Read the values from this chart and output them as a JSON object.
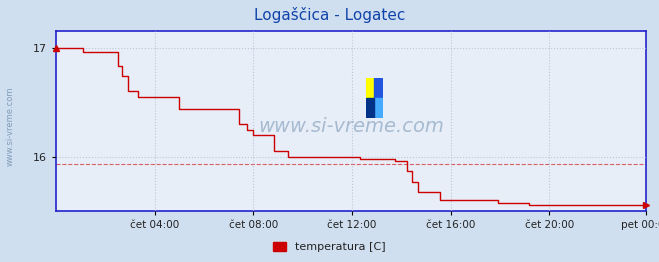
{
  "title": "Logaščica - Logatec",
  "title_color": "#1144aa",
  "title_fontsize": 11,
  "background_color": "#d0dff0",
  "plot_bg_color": "#e8eef8",
  "grid_color": "#b8c8d8",
  "line_color": "#cc0000",
  "axis_color": "#2222cc",
  "watermark_color": "#7090b0",
  "yticks": [
    16,
    17
  ],
  "ylim": [
    15.5,
    17.15
  ],
  "xlim_start": 0,
  "xlim_end": 287,
  "xtick_positions": [
    48,
    96,
    144,
    192,
    240,
    287
  ],
  "xtick_labels": [
    "čet 04:00",
    "čet 08:00",
    "čet 12:00",
    "čet 16:00",
    "čet 20:00",
    "pet 00:00"
  ],
  "legend_label": "temperatura [C]",
  "legend_color": "#cc0000",
  "watermark": "www.si-vreme.com",
  "sidewatermark": "www.si-vreme.com",
  "dashed_line_y": 15.93,
  "num_points": 288,
  "start_temp": 17.0,
  "end_temp": 15.55
}
